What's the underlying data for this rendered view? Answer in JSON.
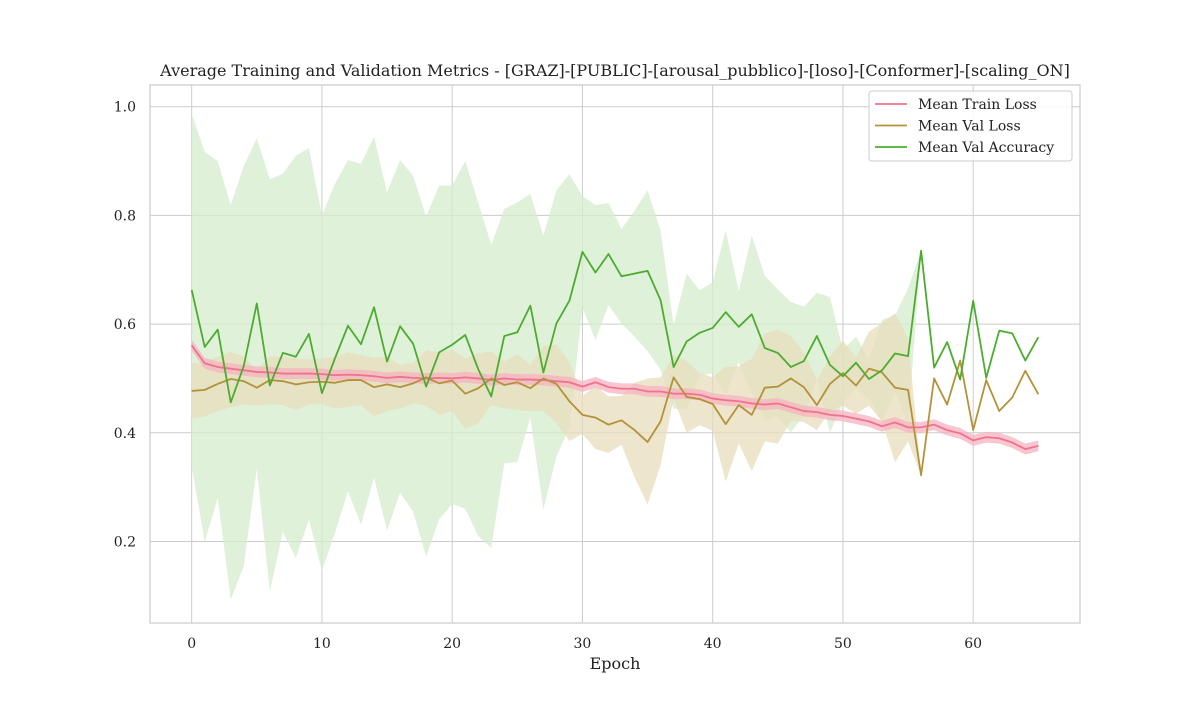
{
  "chart_data": {
    "type": "line",
    "title": "Average Training and Validation Metrics - [GRAZ]-[PUBLIC]-[arousal_pubblico]-[loso]-[Conformer]-[scaling_ON]",
    "xlabel": "Epoch",
    "ylabel": "",
    "xlim": [
      -3.2,
      68.2
    ],
    "ylim": [
      0.05,
      1.04
    ],
    "x_ticks": [
      0,
      10,
      20,
      30,
      40,
      50,
      60
    ],
    "y_ticks": [
      0.2,
      0.4,
      0.6,
      0.8,
      1.0
    ],
    "x_tick_labels": [
      "0",
      "10",
      "20",
      "30",
      "40",
      "50",
      "60"
    ],
    "y_tick_labels": [
      "0.2",
      "0.4",
      "0.6",
      "0.8",
      "1.0"
    ],
    "grid": true,
    "legend_position": "top-right",
    "series": [
      {
        "name": "Mean Train Loss",
        "color": "#f0728c",
        "band_color": "#f5b3c0",
        "values": [
          0.561,
          0.528,
          0.521,
          0.518,
          0.515,
          0.512,
          0.511,
          0.509,
          0.509,
          0.509,
          0.508,
          0.506,
          0.507,
          0.506,
          0.504,
          0.501,
          0.503,
          0.501,
          0.5,
          0.501,
          0.5,
          0.502,
          0.5,
          0.497,
          0.5,
          0.498,
          0.498,
          0.497,
          0.495,
          0.493,
          0.485,
          0.493,
          0.484,
          0.481,
          0.481,
          0.476,
          0.476,
          0.472,
          0.472,
          0.47,
          0.463,
          0.46,
          0.458,
          0.454,
          0.452,
          0.454,
          0.447,
          0.44,
          0.438,
          0.433,
          0.431,
          0.426,
          0.421,
          0.412,
          0.419,
          0.41,
          0.41,
          0.415,
          0.405,
          0.399,
          0.386,
          0.392,
          0.39,
          0.382,
          0.37,
          0.376
        ],
        "band_lower": [
          0.551,
          0.518,
          0.511,
          0.508,
          0.505,
          0.502,
          0.501,
          0.499,
          0.499,
          0.499,
          0.498,
          0.496,
          0.497,
          0.496,
          0.494,
          0.491,
          0.493,
          0.491,
          0.49,
          0.491,
          0.49,
          0.492,
          0.49,
          0.487,
          0.49,
          0.488,
          0.488,
          0.487,
          0.485,
          0.483,
          0.475,
          0.483,
          0.474,
          0.471,
          0.471,
          0.466,
          0.466,
          0.462,
          0.462,
          0.46,
          0.453,
          0.45,
          0.448,
          0.444,
          0.442,
          0.444,
          0.437,
          0.43,
          0.428,
          0.423,
          0.421,
          0.416,
          0.411,
          0.402,
          0.409,
          0.4,
          0.4,
          0.405,
          0.395,
          0.389,
          0.376,
          0.382,
          0.38,
          0.372,
          0.36,
          0.366
        ],
        "band_upper": [
          0.571,
          0.538,
          0.531,
          0.528,
          0.525,
          0.522,
          0.521,
          0.519,
          0.519,
          0.519,
          0.518,
          0.516,
          0.517,
          0.516,
          0.514,
          0.511,
          0.513,
          0.511,
          0.51,
          0.511,
          0.51,
          0.512,
          0.51,
          0.507,
          0.51,
          0.508,
          0.508,
          0.507,
          0.505,
          0.503,
          0.495,
          0.503,
          0.494,
          0.491,
          0.491,
          0.486,
          0.486,
          0.482,
          0.482,
          0.48,
          0.473,
          0.47,
          0.468,
          0.464,
          0.462,
          0.464,
          0.457,
          0.45,
          0.448,
          0.443,
          0.441,
          0.436,
          0.431,
          0.422,
          0.429,
          0.42,
          0.42,
          0.425,
          0.415,
          0.409,
          0.396,
          0.402,
          0.4,
          0.392,
          0.38,
          0.386
        ]
      },
      {
        "name": "Mean Val Loss",
        "color": "#b3923a",
        "band_color": "#e8dcbc",
        "values": [
          0.477,
          0.479,
          0.49,
          0.499,
          0.495,
          0.483,
          0.497,
          0.495,
          0.489,
          0.493,
          0.494,
          0.492,
          0.497,
          0.497,
          0.484,
          0.489,
          0.484,
          0.491,
          0.502,
          0.491,
          0.496,
          0.472,
          0.482,
          0.5,
          0.488,
          0.493,
          0.482,
          0.5,
          0.49,
          0.458,
          0.433,
          0.428,
          0.415,
          0.423,
          0.405,
          0.383,
          0.421,
          0.502,
          0.466,
          0.462,
          0.453,
          0.416,
          0.451,
          0.433,
          0.483,
          0.485,
          0.5,
          0.484,
          0.451,
          0.49,
          0.51,
          0.487,
          0.518,
          0.511,
          0.483,
          0.479,
          0.322,
          0.5,
          0.452,
          0.533,
          0.405,
          0.497,
          0.44,
          0.465,
          0.514,
          0.471
        ],
        "band_lower": [
          0.427,
          0.43,
          0.44,
          0.447,
          0.452,
          0.45,
          0.453,
          0.451,
          0.442,
          0.452,
          0.453,
          0.445,
          0.448,
          0.451,
          0.43,
          0.44,
          0.445,
          0.454,
          0.45,
          0.433,
          0.44,
          0.407,
          0.418,
          0.451,
          0.445,
          0.442,
          0.44,
          0.44,
          0.418,
          0.385,
          0.398,
          0.37,
          0.363,
          0.378,
          0.318,
          0.268,
          0.34,
          0.463,
          0.4,
          0.414,
          0.404,
          0.31,
          0.38,
          0.33,
          0.384,
          0.38,
          0.422,
          0.42,
          0.405,
          0.44,
          0.45,
          0.435,
          0.45,
          0.42,
          0.346,
          0.384,
          0.322,
          0.5,
          0.452,
          0.533,
          0.405,
          0.497,
          0.44,
          0.465,
          0.514,
          0.471
        ],
        "band_upper": [
          0.527,
          0.53,
          0.54,
          0.549,
          0.54,
          0.515,
          0.541,
          0.54,
          0.537,
          0.535,
          0.536,
          0.54,
          0.548,
          0.543,
          0.538,
          0.54,
          0.525,
          0.529,
          0.552,
          0.548,
          0.553,
          0.537,
          0.546,
          0.55,
          0.531,
          0.545,
          0.525,
          0.56,
          0.562,
          0.53,
          0.468,
          0.486,
          0.467,
          0.468,
          0.492,
          0.5,
          0.502,
          0.542,
          0.532,
          0.51,
          0.502,
          0.522,
          0.522,
          0.536,
          0.582,
          0.59,
          0.578,
          0.548,
          0.497,
          0.54,
          0.57,
          0.539,
          0.586,
          0.602,
          0.62,
          0.574,
          0.322,
          0.5,
          0.452,
          0.533,
          0.405,
          0.497,
          0.44,
          0.465,
          0.514,
          0.471
        ]
      },
      {
        "name": "Mean Val Accuracy",
        "color": "#4dac30",
        "band_color": "#d5ecce",
        "values": [
          0.663,
          0.558,
          0.59,
          0.456,
          0.523,
          0.638,
          0.487,
          0.547,
          0.54,
          0.582,
          0.473,
          0.537,
          0.597,
          0.563,
          0.631,
          0.531,
          0.596,
          0.564,
          0.485,
          0.548,
          0.562,
          0.58,
          0.517,
          0.467,
          0.578,
          0.585,
          0.634,
          0.511,
          0.601,
          0.643,
          0.733,
          0.695,
          0.729,
          0.688,
          0.693,
          0.698,
          0.644,
          0.521,
          0.568,
          0.584,
          0.593,
          0.622,
          0.595,
          0.618,
          0.556,
          0.547,
          0.521,
          0.532,
          0.578,
          0.525,
          0.504,
          0.529,
          0.499,
          0.515,
          0.546,
          0.541,
          0.735,
          0.52,
          0.567,
          0.498,
          0.643,
          0.501,
          0.588,
          0.583,
          0.533,
          0.576
        ],
        "band_lower": [
          0.339,
          0.199,
          0.28,
          0.093,
          0.155,
          0.334,
          0.108,
          0.217,
          0.17,
          0.24,
          0.146,
          0.216,
          0.292,
          0.231,
          0.317,
          0.22,
          0.29,
          0.255,
          0.172,
          0.241,
          0.269,
          0.26,
          0.21,
          0.188,
          0.344,
          0.346,
          0.428,
          0.259,
          0.356,
          0.41,
          0.63,
          0.571,
          0.635,
          0.601,
          0.577,
          0.55,
          0.516,
          0.444,
          0.443,
          0.506,
          0.509,
          0.471,
          0.53,
          0.473,
          0.423,
          0.43,
          0.401,
          0.432,
          0.498,
          0.4,
          0.455,
          0.481,
          0.463,
          0.422,
          0.476,
          0.416,
          0.735,
          0.52,
          0.567,
          0.498,
          0.643,
          0.501,
          0.588,
          0.583,
          0.533,
          0.576
        ],
        "band_upper": [
          0.987,
          0.917,
          0.9,
          0.819,
          0.891,
          0.942,
          0.866,
          0.877,
          0.91,
          0.924,
          0.8,
          0.858,
          0.902,
          0.895,
          0.945,
          0.842,
          0.902,
          0.873,
          0.798,
          0.855,
          0.855,
          0.9,
          0.824,
          0.746,
          0.812,
          0.824,
          0.84,
          0.763,
          0.846,
          0.876,
          0.836,
          0.819,
          0.823,
          0.775,
          0.809,
          0.846,
          0.772,
          0.598,
          0.693,
          0.662,
          0.677,
          0.773,
          0.66,
          0.763,
          0.689,
          0.664,
          0.641,
          0.632,
          0.658,
          0.65,
          0.553,
          0.577,
          0.535,
          0.608,
          0.616,
          0.666,
          0.735,
          0.52,
          0.567,
          0.498,
          0.643,
          0.501,
          0.588,
          0.583,
          0.533,
          0.576
        ]
      }
    ]
  }
}
